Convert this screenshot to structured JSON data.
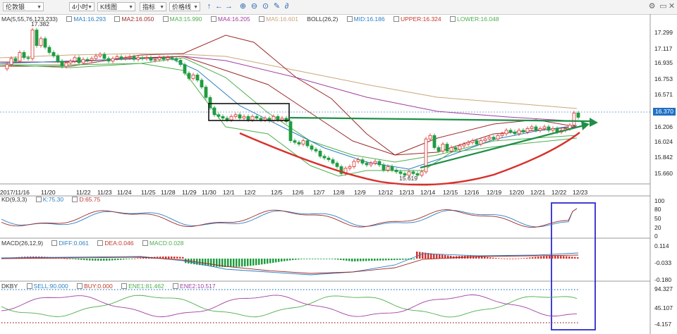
{
  "toolbar": {
    "symbol": "伦敦银",
    "period": "4小时",
    "chart_type": "K线图",
    "indicator": "指标",
    "price_line": "价格线"
  },
  "main_legend": {
    "ma": "MA(5,55,76,123,233)",
    "ma1": "MA1:16.293",
    "ma2": "MA2:16.050",
    "ma3": "MA3:15.990",
    "ma4": "MA4:16.205",
    "ma5": "MA5:16.601",
    "boll": "BOLL(26,2)",
    "mid": "MID:16.186",
    "upper": "UPPER:16.324",
    "lower": "LOWER:16.048"
  },
  "kd_legend": {
    "name": "KD(9,3,3)",
    "k": "K:75.30",
    "d": "D:65.75"
  },
  "macd_legend": {
    "name": "MACD(26,12,9)",
    "diff": "DIFF:0.061",
    "dea": "DEA:0.046",
    "macd": "MACD:0.028"
  },
  "dkby_legend": {
    "name": "DKBY",
    "sell": "SELL:90.000",
    "buy": "BUY:0.000",
    "ene1": "ENE1:81.462",
    "ene2": "ENE2:10.517"
  },
  "price_axis": [
    "17.299",
    "17.117",
    "16.935",
    "16.753",
    "16.571",
    "16.206",
    "16.024",
    "15.842",
    "15.660"
  ],
  "current_price": "16.370",
  "kd_axis": [
    "100",
    "80",
    "50",
    "20",
    "0"
  ],
  "macd_axis": [
    "0.114",
    "-0.033",
    "-0.180"
  ],
  "dkby_axis": [
    "94.327",
    "45.107",
    "-4.157"
  ],
  "dates": [
    "2017/11/16",
    "11/20",
    "11/22",
    "11/23",
    "11/24",
    "11/25",
    "11/28",
    "11/29",
    "11/30",
    "12/1",
    "12/2",
    "12/5",
    "12/6",
    "12/7",
    "12/8",
    "12/9",
    "12/12",
    "12/13",
    "12/14",
    "12/15",
    "12/16",
    "12/19",
    "12/20",
    "12/21",
    "12/22",
    "12/23"
  ],
  "annotations": {
    "high": "17.382",
    "low": "15.619"
  },
  "colors": {
    "up": "#d8302b",
    "down": "#1f9d40",
    "ma1": "#2b7fc3",
    "ma2": "#9e2a2a",
    "ma3": "#4fae4f",
    "ma4": "#a13ea1",
    "ma5": "#c9a67a",
    "trend_red": "#d8302b",
    "trend_green": "#1f8f48",
    "box_blue": "#2b2bcf"
  }
}
